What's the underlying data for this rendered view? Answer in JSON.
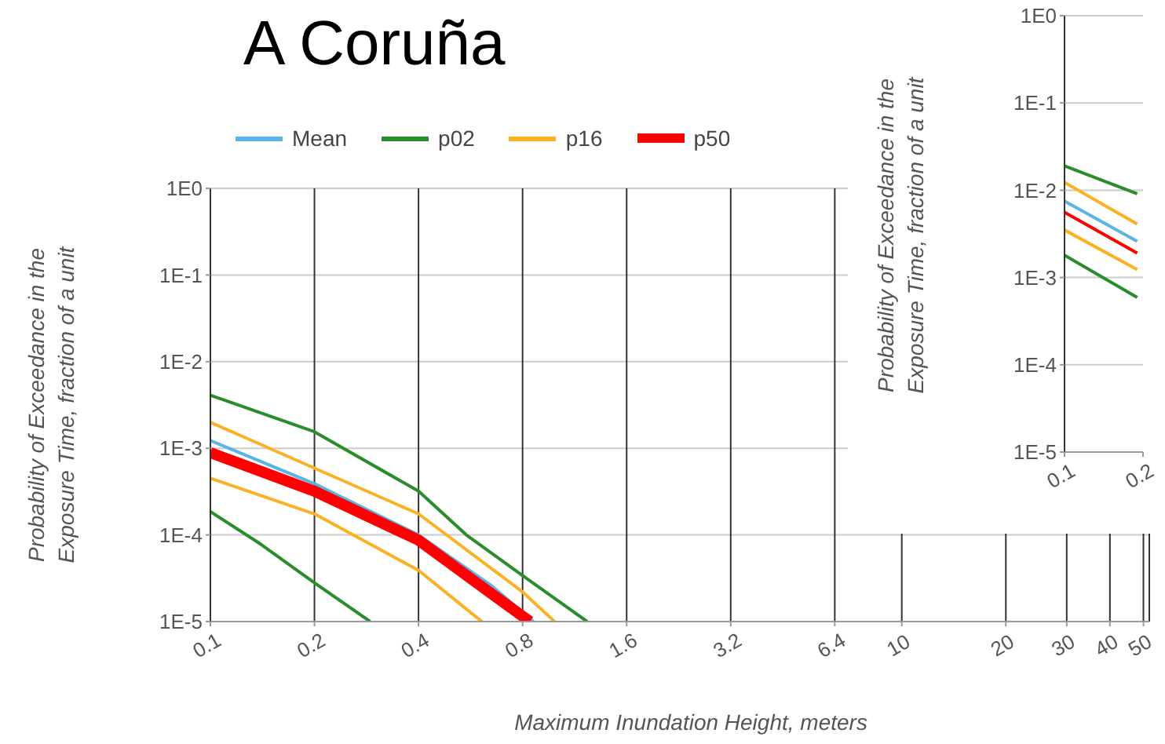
{
  "chart_data": [
    {
      "type": "line",
      "title": "A Coruña",
      "xlabel": "Maximum Inundation Height, meters",
      "ylabel": "Probability of Exceedance in the Exposure Time, fraction of a unit",
      "log": "xy",
      "grid": true,
      "legend": "top",
      "marker": "none",
      "xlim": [
        0.1,
        52
      ],
      "ylim": [
        1e-05,
        1
      ],
      "xticks": [
        0.1,
        0.2,
        0.4,
        0.8,
        1.6,
        3.2,
        6.4,
        10,
        20,
        30,
        40,
        50
      ],
      "yticks": [
        {
          "value": 1,
          "label": "1E0"
        },
        {
          "value": 0.1,
          "label": "1E-1"
        },
        {
          "value": 0.01,
          "label": "1E-2"
        },
        {
          "value": 0.001,
          "label": "1E-3"
        },
        {
          "value": 0.0001,
          "label": "1E-4"
        },
        {
          "value": 1e-05,
          "label": "1E-5"
        }
      ],
      "series": [
        {
          "name": "Mean",
          "color": "#5ab4e5",
          "x": [
            0.1,
            0.2,
            0.4,
            0.65,
            0.86
          ],
          "values": [
            0.00123,
            0.00039,
            0.0001,
            2.6e-05,
            1e-05
          ]
        },
        {
          "name": "p02",
          "color": "#2a8c2a",
          "x": [
            0.1,
            0.2,
            0.4,
            0.55,
            0.8,
            1.23
          ],
          "values": [
            0.0041,
            0.00155,
            0.00032,
            0.0001,
            3.4e-05,
            1e-05
          ]
        },
        {
          "name": "p16",
          "color": "#fbb124",
          "x": [
            0.1,
            0.2,
            0.4,
            0.8,
            0.99
          ],
          "values": [
            0.002,
            0.00059,
            0.000175,
            2.2e-05,
            1e-05
          ]
        },
        {
          "name": "p50",
          "color": "#ff0000",
          "x": [
            0.1,
            0.2,
            0.4,
            0.65,
            0.84
          ],
          "values": [
            0.00089,
            0.00032,
            8.7e-05,
            2.1e-05,
            1e-05
          ]
        },
        {
          "color": "#fbb124",
          "x": [
            0.1,
            0.2,
            0.4,
            0.61
          ],
          "values": [
            0.00045,
            0.000175,
            3.9e-05,
            1e-05
          ]
        },
        {
          "color": "#2a8c2a",
          "x": [
            0.1,
            0.14,
            0.2,
            0.29
          ],
          "values": [
            0.000186,
            7.8e-05,
            2.8e-05,
            1e-05
          ]
        }
      ]
    },
    {
      "type": "line",
      "ylabel": "Probability of Exceedance in the Exposure Time, fraction of a unit",
      "log": "xy",
      "grid": "y",
      "marker": "none",
      "xlim": [
        0.1,
        0.2
      ],
      "ylim": [
        1e-05,
        1
      ],
      "xticks": [
        0.1,
        0.2
      ],
      "yticks": [
        {
          "value": 1,
          "label": "1E0"
        },
        {
          "value": 0.1,
          "label": "1E-1"
        },
        {
          "value": 0.01,
          "label": "1E-2"
        },
        {
          "value": 0.001,
          "label": "1E-3"
        },
        {
          "value": 0.0001,
          "label": "1E-4"
        },
        {
          "value": 1e-05,
          "label": "1E-5"
        }
      ],
      "series": [
        {
          "color": "#5ab4e5",
          "x": [
            0.1,
            0.19
          ],
          "values": [
            0.0075,
            0.0026
          ]
        },
        {
          "color": "#2a8c2a",
          "x": [
            0.1,
            0.19
          ],
          "values": [
            0.019,
            0.0091
          ]
        },
        {
          "color": "#fbb124",
          "x": [
            0.1,
            0.19
          ],
          "values": [
            0.0123,
            0.0041
          ]
        },
        {
          "color": "#ff0000",
          "x": [
            0.1,
            0.19
          ],
          "values": [
            0.0056,
            0.0019
          ]
        },
        {
          "color": "#fbb124",
          "x": [
            0.1,
            0.19
          ],
          "values": [
            0.0035,
            0.00123
          ]
        },
        {
          "color": "#2a8c2a",
          "x": [
            0.1,
            0.19
          ],
          "values": [
            0.0018,
            0.00059
          ]
        }
      ]
    }
  ]
}
